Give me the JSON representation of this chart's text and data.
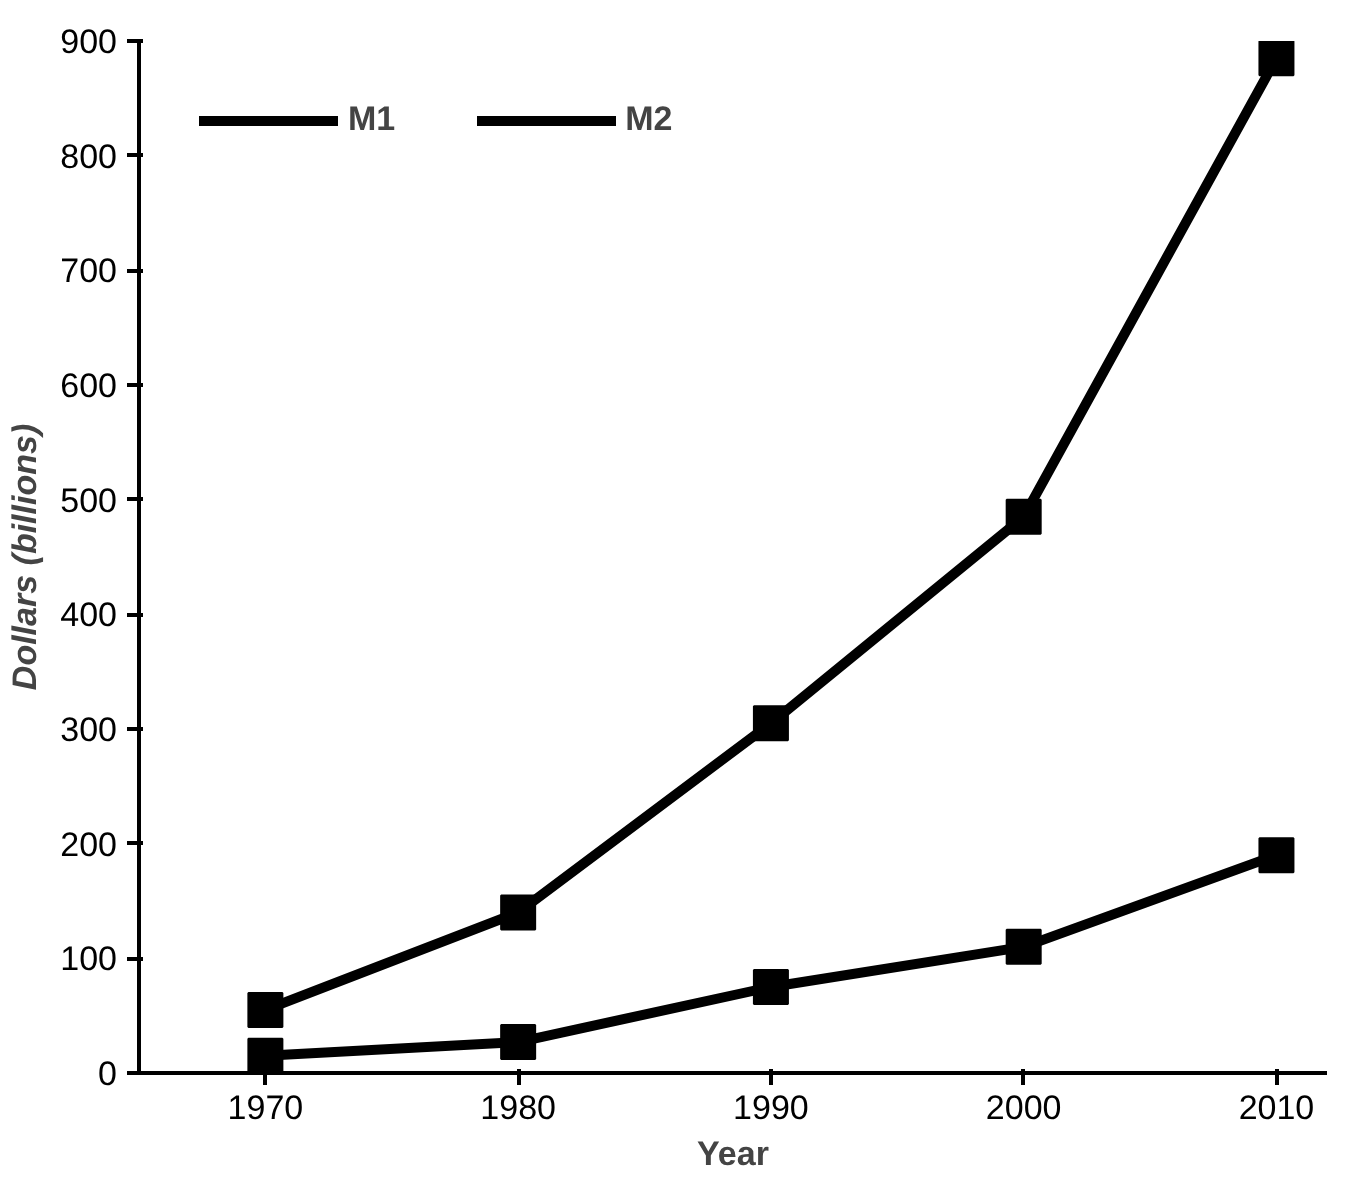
{
  "chart_data": {
    "type": "line",
    "xlabel": "Year",
    "ylabel": "Dollars (billions)",
    "x": [
      1970,
      1980,
      1990,
      2000,
      2010
    ],
    "series": [
      {
        "name": "M1",
        "color": "#000000",
        "values": [
          15,
          27,
          75,
          110,
          190
        ]
      },
      {
        "name": "M2",
        "color": "#000000",
        "values": [
          55,
          140,
          305,
          485,
          885
        ]
      }
    ],
    "xlim": [
      1965,
      2012
    ],
    "xticks": [
      1970,
      1980,
      1990,
      2000,
      2010
    ],
    "ylim": [
      0,
      900
    ],
    "yticks": [
      0,
      100,
      200,
      300,
      400,
      500,
      600,
      700,
      800,
      900
    ],
    "grid": false,
    "legend": "top left",
    "marker": "square",
    "line_style": "solid"
  }
}
